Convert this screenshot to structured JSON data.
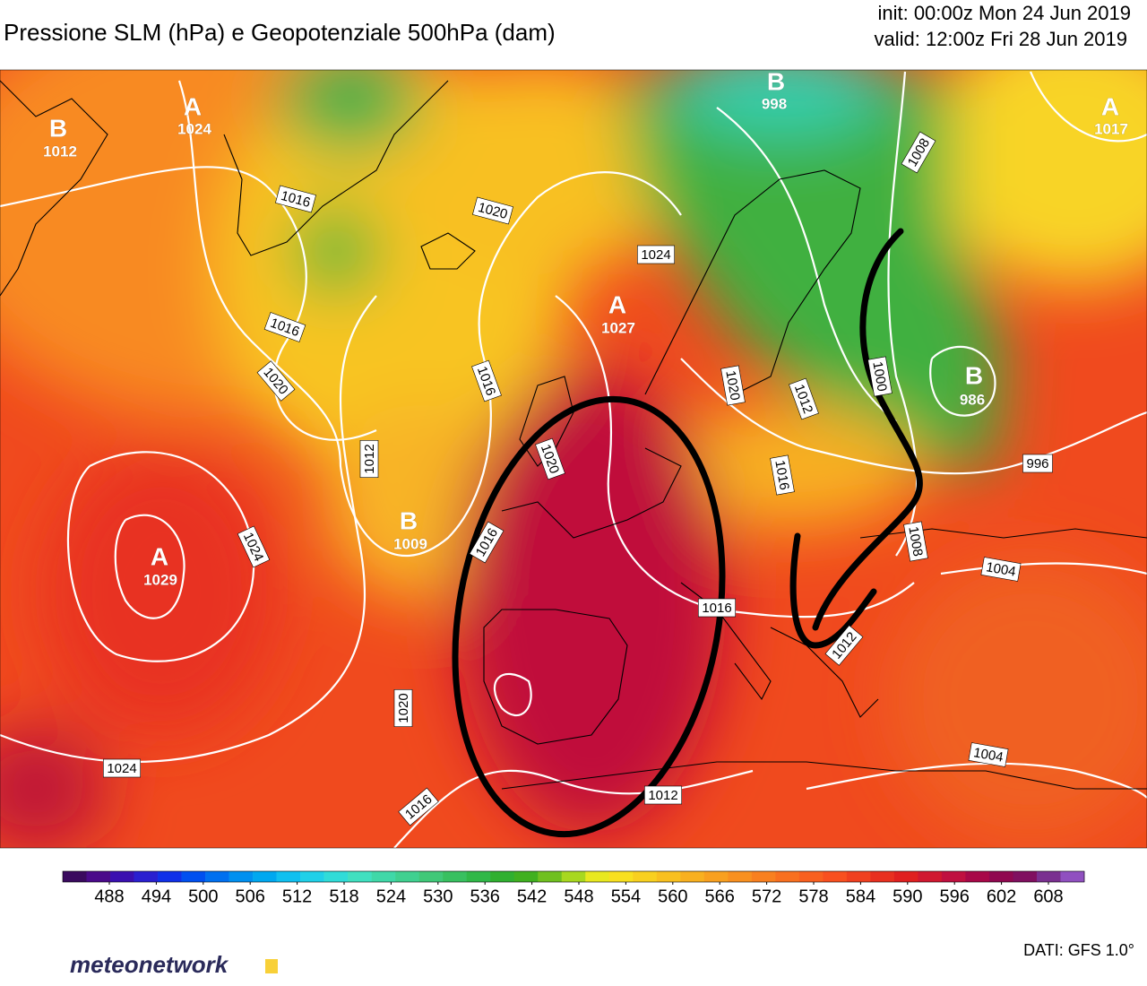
{
  "header": {
    "title": "Pressione SLM (hPa) e Geopotenziale 500hPa (dam)",
    "init": "init: 00:00z Mon 24 Jun 2019",
    "valid": "valid: 12:00z Fri 28 Jun 2019"
  },
  "centers": [
    {
      "letter": "B",
      "value": 1012
    },
    {
      "letter": "A",
      "value": 1024
    },
    {
      "letter": "B",
      "value": 998
    },
    {
      "letter": "A",
      "value": 1017
    },
    {
      "letter": "A",
      "value": 1027
    },
    {
      "letter": "B",
      "value": 986
    },
    {
      "letter": "B",
      "value": 1009
    },
    {
      "letter": "A",
      "value": 1029
    }
  ],
  "isobar_labels": [
    1016,
    1020,
    1024,
    1016,
    1020,
    1016,
    1012,
    1024,
    1016,
    1020,
    1020,
    1024,
    1016,
    1012,
    1016,
    1020,
    1012,
    1016,
    1008,
    1000,
    996,
    1008,
    1004,
    1012,
    1004
  ],
  "colorbar": {
    "colors": [
      "#3a0a5e",
      "#4a0a8a",
      "#3a10b0",
      "#2a20d0",
      "#1030e8",
      "#0050f0",
      "#0070f0",
      "#0090f0",
      "#00a8f0",
      "#10c0f0",
      "#20d0e8",
      "#30dcd8",
      "#40e0c0",
      "#40d8a8",
      "#40d090",
      "#40c878",
      "#38c060",
      "#30b848",
      "#30b030",
      "#40b020",
      "#70c020",
      "#a8d820",
      "#e8e820",
      "#f8e020",
      "#f8d020",
      "#f8c020",
      "#f8b020",
      "#f8a020",
      "#f89020",
      "#f88020",
      "#f87020",
      "#f86020",
      "#f85020",
      "#f04020",
      "#e83020",
      "#e02020",
      "#d01830",
      "#c01040",
      "#a80848",
      "#900850",
      "#801060",
      "#7a3090",
      "#9050c0"
    ],
    "ticks": [
      488,
      494,
      500,
      506,
      512,
      518,
      524,
      530,
      536,
      542,
      548,
      554,
      560,
      566,
      572,
      578,
      584,
      590,
      596,
      602,
      608
    ]
  },
  "footer": {
    "source": "DATI:  GFS 1.0°",
    "logo": "meteonetwork"
  }
}
